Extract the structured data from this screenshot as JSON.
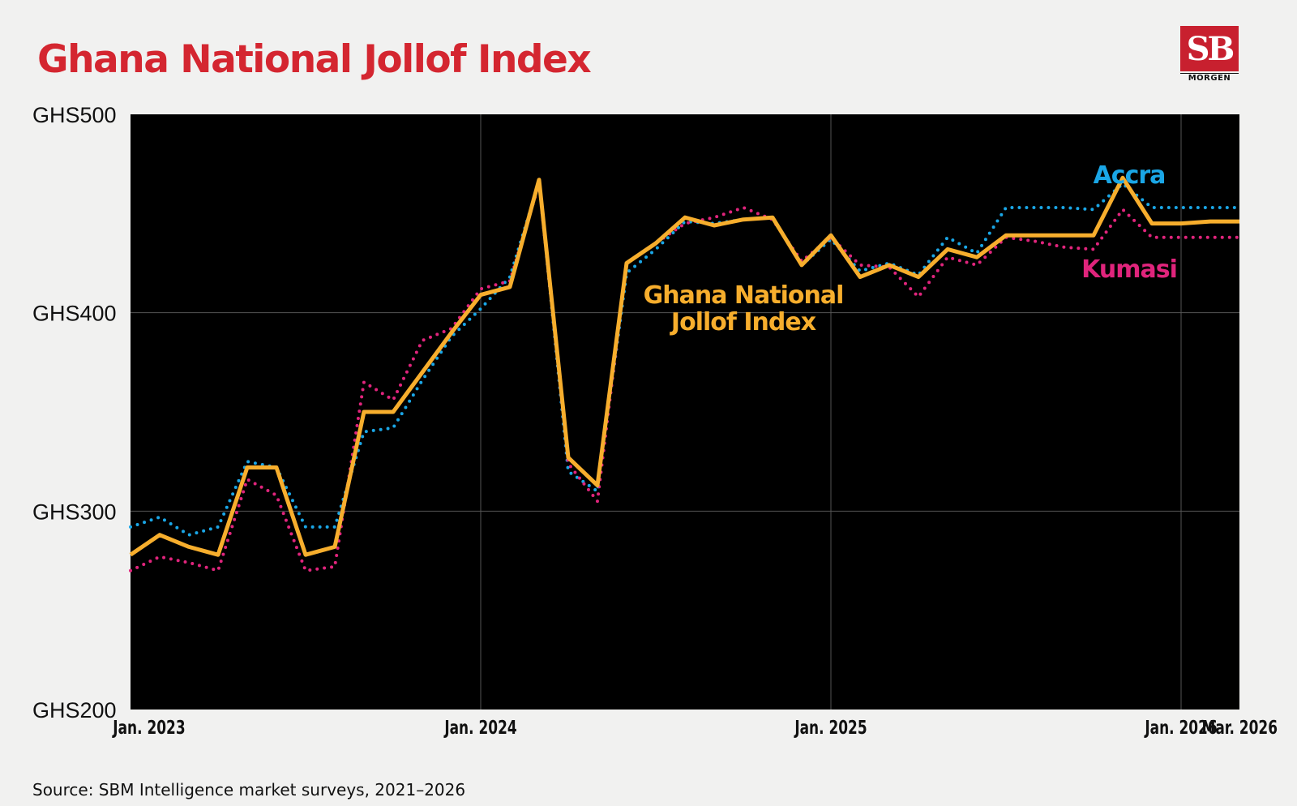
{
  "brand": {
    "logo_text": "SB",
    "logo_subtext": "MORGEN",
    "accent": "#d42630"
  },
  "footer": {
    "source": "Source: SBM Intelligence market surveys, 2021–2026"
  },
  "chart_data": {
    "type": "line",
    "title": "Ghana National Jollof Index",
    "xlabel": "",
    "ylabel": "",
    "x_unit": "months since Jan. 2023",
    "xlim": [
      0,
      38
    ],
    "ylim": [
      200,
      500
    ],
    "grid": true,
    "yticks": [
      200,
      300,
      400,
      500
    ],
    "ytick_labels": [
      "GHS200",
      "GHS300",
      "GHS400",
      "GHS500"
    ],
    "xticks": [
      0,
      12,
      24,
      36,
      38
    ],
    "xtick_labels": [
      "Jan. 2023",
      "Jan. 2024",
      "Jan. 2025",
      "Jan. 2026",
      "Mar. 2026"
    ],
    "series": [
      {
        "name": "Accra",
        "label": "Accra",
        "color": "#1aa6e6",
        "style": "dotted",
        "x": [
          0,
          1,
          2,
          3,
          4,
          5,
          6,
          7,
          8,
          9,
          10,
          11,
          12,
          13,
          14,
          15,
          16,
          17,
          18,
          19,
          20,
          21,
          22,
          23,
          24,
          25,
          26,
          27,
          28,
          29,
          30,
          31,
          32,
          33,
          34,
          35,
          36,
          37,
          38
        ],
        "values": [
          292,
          297,
          288,
          292,
          325,
          322,
          292,
          292,
          340,
          342,
          366,
          388,
          402,
          418,
          466,
          320,
          310,
          420,
          432,
          446,
          445,
          447,
          448,
          424,
          437,
          421,
          425,
          419,
          438,
          430,
          453,
          453,
          453,
          452,
          465,
          453,
          453,
          453,
          453
        ]
      },
      {
        "name": "Kumasi",
        "label": "Kumasi",
        "color": "#e0247c",
        "style": "dotted",
        "x": [
          0,
          1,
          2,
          3,
          4,
          5,
          6,
          7,
          8,
          9,
          10,
          11,
          12,
          13,
          14,
          15,
          16,
          17,
          18,
          19,
          20,
          21,
          22,
          23,
          24,
          25,
          26,
          27,
          28,
          29,
          30,
          31,
          32,
          33,
          34,
          35,
          36,
          37,
          38
        ],
        "values": [
          270,
          277,
          274,
          270,
          316,
          308,
          270,
          272,
          365,
          356,
          386,
          392,
          412,
          416,
          465,
          324,
          305,
          425,
          435,
          445,
          448,
          453,
          447,
          426,
          438,
          424,
          423,
          408,
          428,
          424,
          438,
          436,
          433,
          432,
          452,
          438,
          438,
          438,
          438
        ]
      },
      {
        "name": "Ghana National Jollof Index",
        "label_lines": [
          "Ghana National",
          "Jollof Index"
        ],
        "color": "#f7ae2d",
        "style": "solid",
        "x": [
          0,
          1,
          2,
          3,
          4,
          5,
          6,
          7,
          8,
          9,
          10,
          11,
          12,
          13,
          14,
          15,
          16,
          17,
          18,
          19,
          20,
          21,
          22,
          23,
          24,
          25,
          26,
          27,
          28,
          29,
          30,
          31,
          32,
          33,
          34,
          35,
          36,
          37,
          38
        ],
        "values": [
          278,
          288,
          282,
          278,
          322,
          322,
          278,
          282,
          350,
          350,
          370,
          390,
          409,
          413,
          467,
          327,
          313,
          425,
          435,
          448,
          444,
          447,
          448,
          424,
          439,
          418,
          424,
          418,
          432,
          428,
          439,
          439,
          439,
          439,
          468,
          445,
          445,
          446,
          446
        ]
      }
    ]
  }
}
